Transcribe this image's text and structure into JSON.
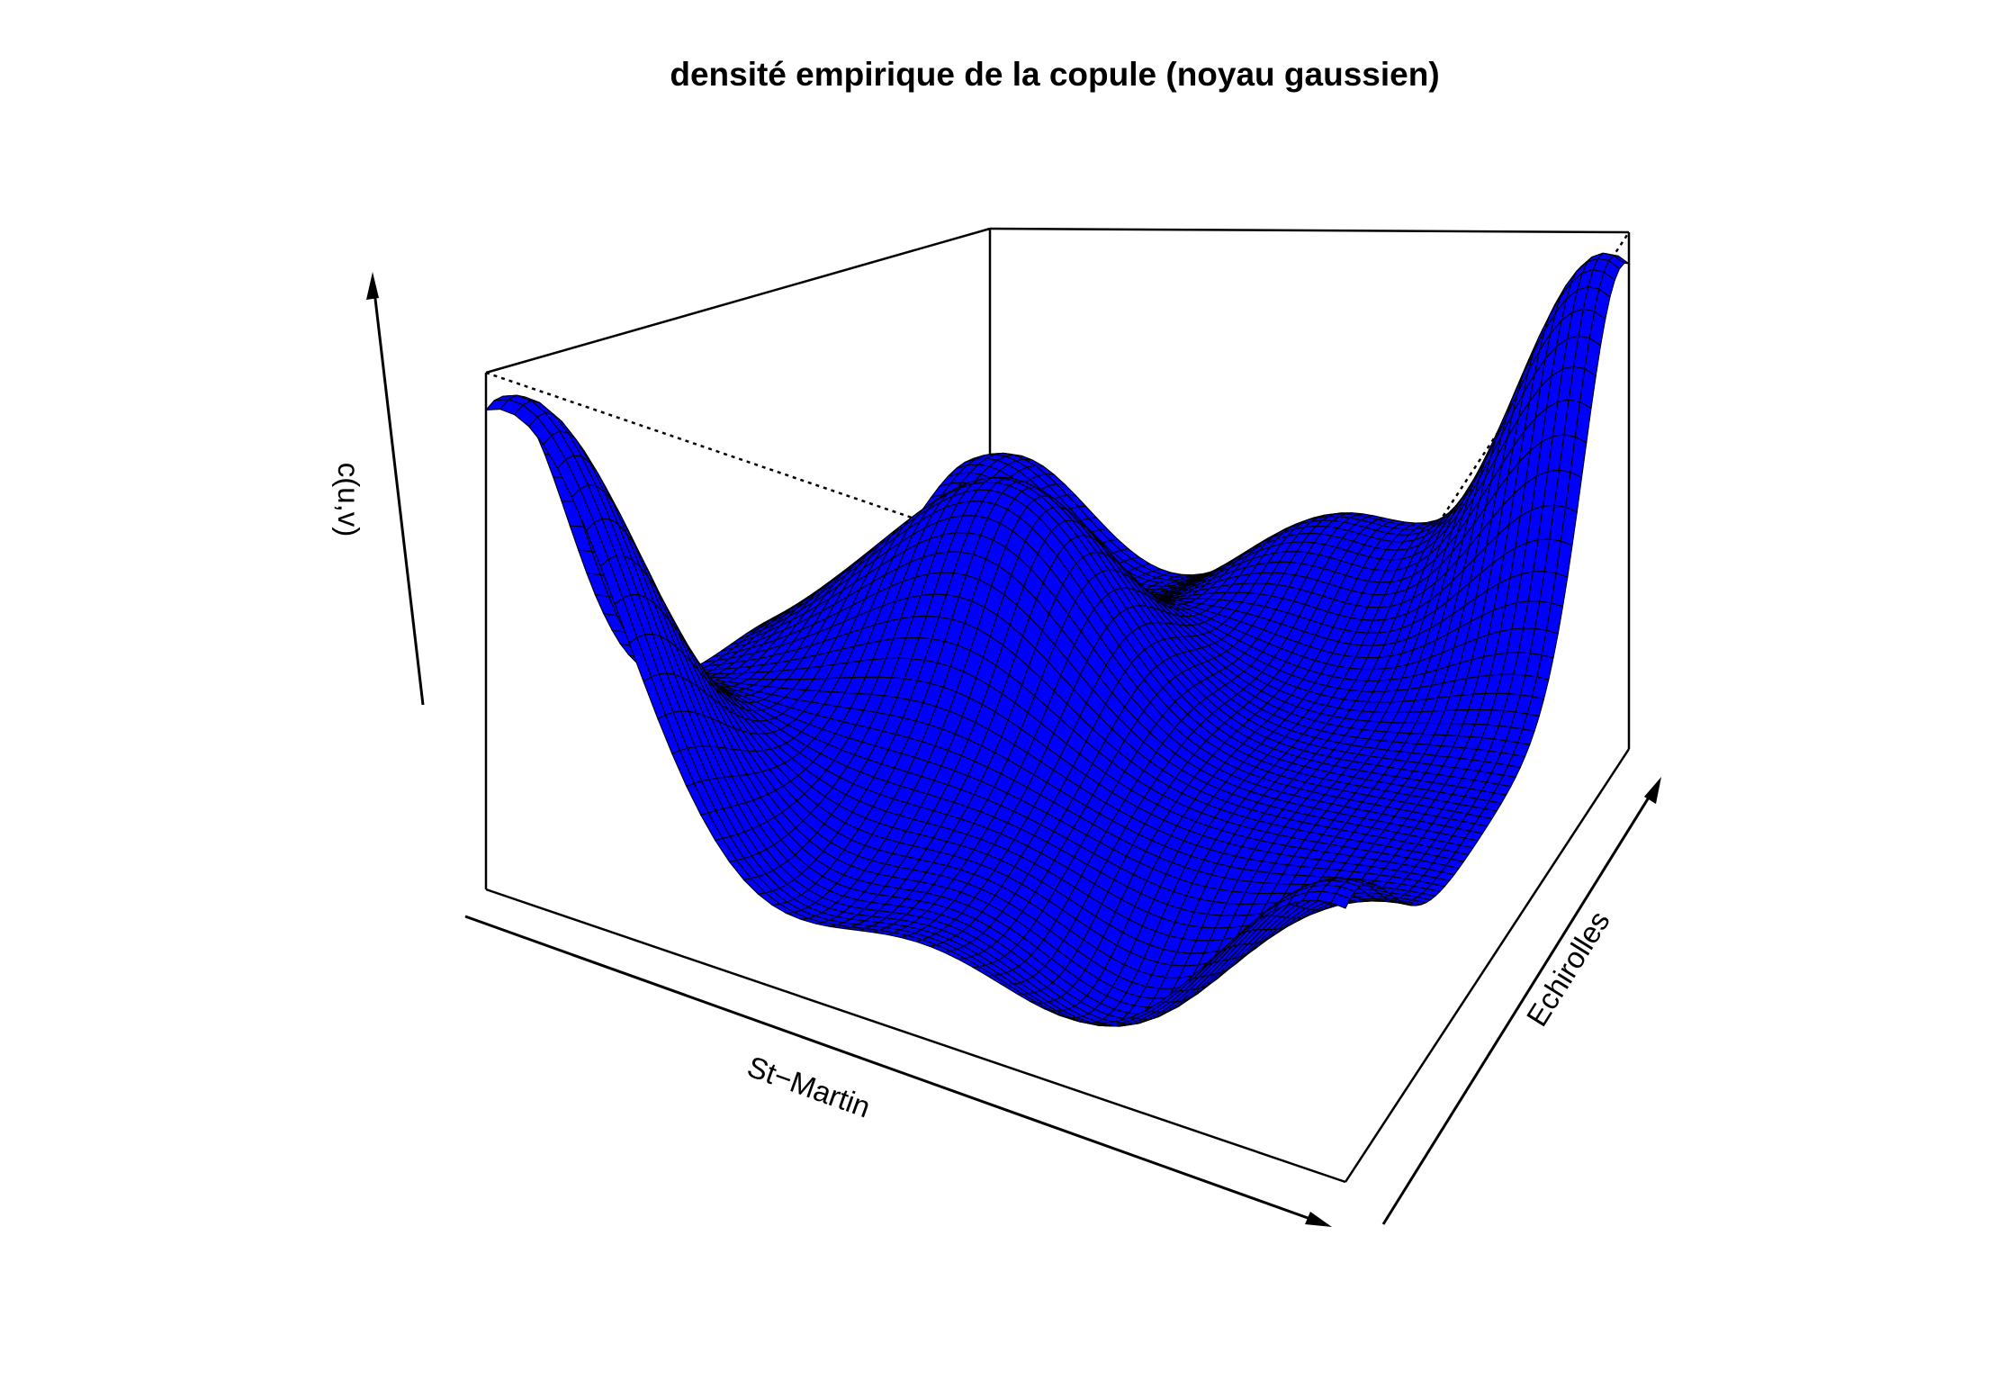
{
  "chart_data": {
    "type": "surface",
    "title": "densité empirique de la copule (noyau gaussien)",
    "xlabel": "St−Martin",
    "ylabel": "Echirolles",
    "zlabel": "c(u,v)",
    "xlim": [
      0,
      1
    ],
    "ylim": [
      0,
      1
    ],
    "grid_resolution": 60,
    "surface_color": "#0000ff",
    "mesh_color": "#000000",
    "box": true,
    "ticks_shown": false,
    "kernel": "gaussien",
    "z_base": 0.55,
    "modes": [
      {
        "u": 0.03,
        "v": 0.03,
        "height": 1.45
      },
      {
        "u": 0.97,
        "v": 0.97,
        "height": 1.45
      },
      {
        "u": 0.03,
        "v": 0.97,
        "height": 0.62
      },
      {
        "u": 0.97,
        "v": 0.03,
        "height": 0.6
      },
      {
        "u": 0.35,
        "v": 0.55,
        "height": 0.8
      },
      {
        "u": 0.55,
        "v": 0.95,
        "height": 0.4
      },
      {
        "u": 0.15,
        "v": 0.6,
        "height": 0.35
      }
    ],
    "troughs": [
      {
        "u": 0.72,
        "v": 0.1,
        "depth": 0.45
      },
      {
        "u": 0.3,
        "v": 0.05,
        "depth": 0.35
      }
    ]
  }
}
